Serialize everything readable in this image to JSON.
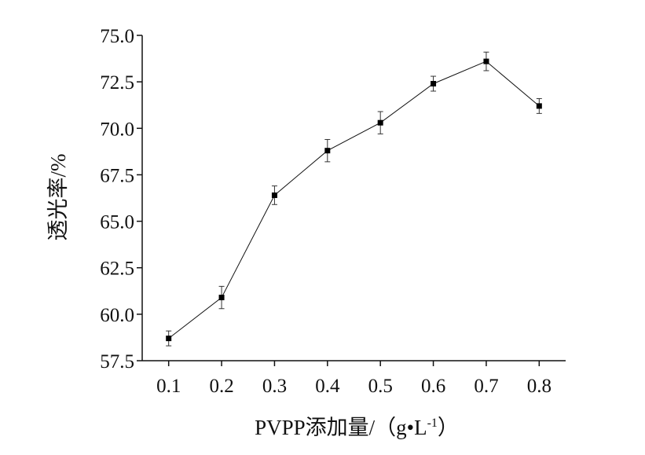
{
  "chart_data": {
    "type": "line",
    "title": "",
    "xlabel_main": "PVPP添加量/（g•L",
    "xlabel_sup": "-1",
    "xlabel_end": "）",
    "ylabel": "透光率/%",
    "x": [
      0.1,
      0.2,
      0.3,
      0.4,
      0.5,
      0.6,
      0.7,
      0.8
    ],
    "x_tick_labels": [
      "0.1",
      "0.2",
      "0.3",
      "0.4",
      "0.5",
      "0.6",
      "0.7",
      "0.8"
    ],
    "xlim": [
      0.05,
      0.85
    ],
    "ylim": [
      57.5,
      75.0
    ],
    "y_ticks": [
      57.5,
      60.0,
      62.5,
      65.0,
      67.5,
      70.0,
      72.5,
      75.0
    ],
    "y_tick_labels": [
      "57.5",
      "60.0",
      "62.5",
      "65.0",
      "67.5",
      "70.0",
      "72.5",
      "75.0"
    ],
    "series": [
      {
        "values": [
          58.7,
          60.9,
          66.4,
          68.8,
          70.3,
          72.4,
          73.6,
          71.2
        ],
        "errors": [
          0.4,
          0.6,
          0.5,
          0.6,
          0.6,
          0.4,
          0.5,
          0.4
        ],
        "marker": "square",
        "color": "#000000"
      }
    ],
    "grid": false,
    "legend": "none"
  }
}
